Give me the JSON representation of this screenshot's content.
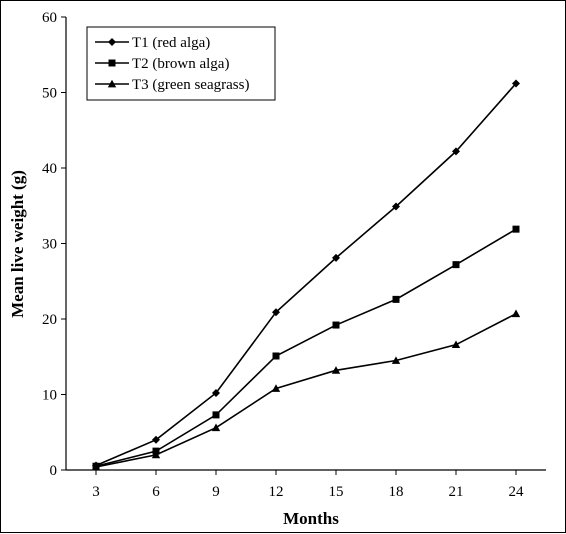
{
  "chart_data": {
    "type": "line",
    "title": "",
    "xlabel": "Months",
    "ylabel": "Mean live weight (g)",
    "x": [
      3,
      6,
      9,
      12,
      15,
      18,
      21,
      24
    ],
    "ylim": [
      0,
      60
    ],
    "yticks": [
      0,
      10,
      20,
      30,
      40,
      50,
      60
    ],
    "grid": false,
    "legend_position": "top-left",
    "series": [
      {
        "name": "T1 (red alga)",
        "marker": "diamond",
        "values": [
          0.6,
          4.0,
          10.2,
          20.9,
          28.1,
          34.9,
          42.2,
          51.2
        ]
      },
      {
        "name": "T2 (brown alga)",
        "marker": "square",
        "values": [
          0.5,
          2.5,
          7.3,
          15.1,
          19.2,
          22.6,
          27.2,
          31.9
        ]
      },
      {
        "name": "T3 (green seagrass)",
        "marker": "triangle",
        "values": [
          0.4,
          2.0,
          5.6,
          10.8,
          13.2,
          14.5,
          16.6,
          20.7
        ]
      }
    ]
  }
}
